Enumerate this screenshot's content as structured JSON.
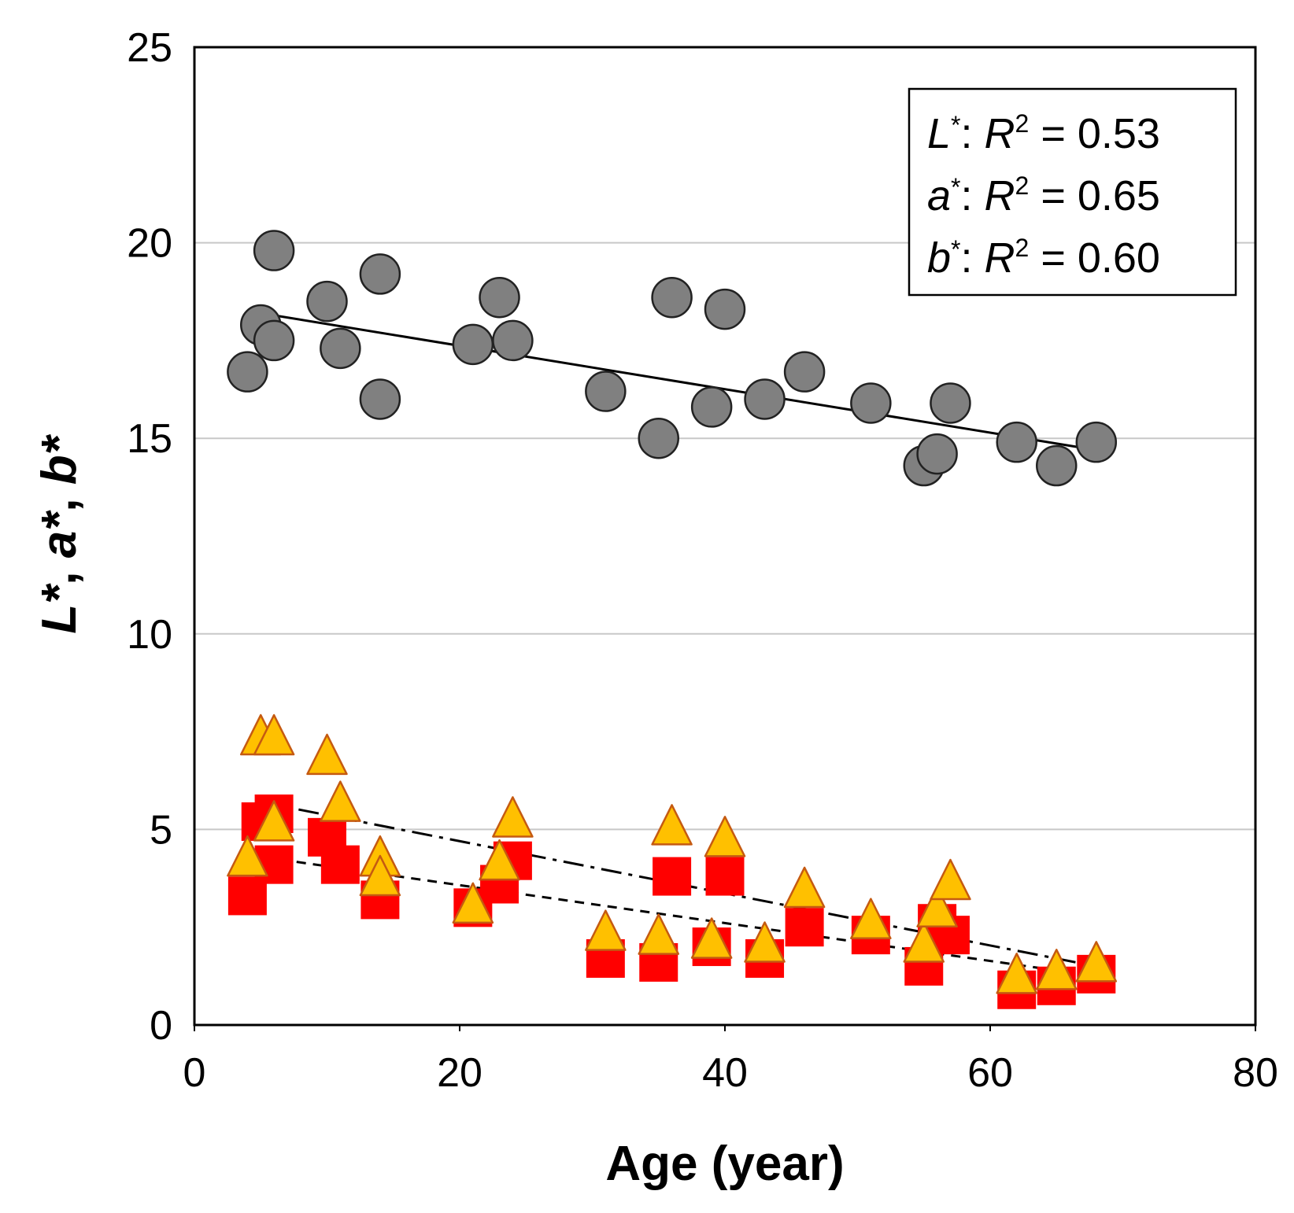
{
  "chart_data": {
    "type": "scatter",
    "title": "",
    "xlabel": "Age (year)",
    "ylabel_parts": [
      "L*",
      ", ",
      "a*",
      ", ",
      "b*"
    ],
    "xlim": [
      0,
      80
    ],
    "ylim": [
      0,
      25
    ],
    "xticks": [
      0,
      20,
      40,
      60,
      80
    ],
    "yticks": [
      0,
      5,
      10,
      15,
      20,
      25
    ],
    "grid": "horizontal",
    "legend": {
      "placement": "top-right",
      "entries": [
        {
          "symbol": "L",
          "star": "*",
          "r": "R",
          "sq": "2",
          "value": "= 0.53"
        },
        {
          "symbol": "a",
          "star": "*",
          "r": "R",
          "sq": "2",
          "value": "= 0.65"
        },
        {
          "symbol": "b",
          "star": "*",
          "r": "R",
          "sq": "2",
          "value": "= 0.60"
        }
      ]
    },
    "series": [
      {
        "name": "L*",
        "marker": "circle",
        "color": "#808080",
        "edge": "#222222",
        "points": [
          [
            4,
            16.7
          ],
          [
            5,
            17.9
          ],
          [
            6,
            19.8
          ],
          [
            6,
            17.5
          ],
          [
            10,
            18.5
          ],
          [
            11,
            17.3
          ],
          [
            14,
            19.2
          ],
          [
            14,
            16
          ],
          [
            21,
            17.4
          ],
          [
            23,
            18.6
          ],
          [
            24,
            17.5
          ],
          [
            31,
            16.2
          ],
          [
            35,
            15
          ],
          [
            36,
            18.6
          ],
          [
            39,
            15.8
          ],
          [
            40,
            18.3
          ],
          [
            43,
            16
          ],
          [
            46,
            16.7
          ],
          [
            51,
            15.9
          ],
          [
            55,
            14.3
          ],
          [
            56,
            14.6
          ],
          [
            57,
            15.9
          ],
          [
            62,
            14.9
          ],
          [
            65,
            14.3
          ],
          [
            68,
            14.9
          ]
        ],
        "trend": {
          "x": [
            5,
            68
          ],
          "y": [
            18.2,
            14.7
          ],
          "style": "solid"
        }
      },
      {
        "name": "a*",
        "marker": "square",
        "color": "#ff0000",
        "edge": "#ff0000",
        "points": [
          [
            4,
            3.3
          ],
          [
            5,
            5.2
          ],
          [
            6,
            5.4
          ],
          [
            6,
            4.1
          ],
          [
            10,
            4.8
          ],
          [
            11,
            4.1
          ],
          [
            14,
            3.2
          ],
          [
            21,
            3
          ],
          [
            23,
            3.6
          ],
          [
            24,
            4.2
          ],
          [
            31,
            1.7
          ],
          [
            35,
            1.6
          ],
          [
            36,
            3.8
          ],
          [
            39,
            2
          ],
          [
            40,
            3.8
          ],
          [
            43,
            1.7
          ],
          [
            46,
            2.5
          ],
          [
            51,
            2.3
          ],
          [
            55,
            1.5
          ],
          [
            56,
            2.6
          ],
          [
            57,
            2.3
          ],
          [
            62,
            0.9
          ],
          [
            65,
            1
          ],
          [
            68,
            1.3
          ]
        ],
        "trend": {
          "x": [
            4,
            68
          ],
          "y": [
            4.35,
            1.25
          ],
          "style": "dashed"
        }
      },
      {
        "name": "b*",
        "marker": "triangle",
        "color": "#ffc000",
        "edge": "#c55a11",
        "points": [
          [
            4,
            4.2
          ],
          [
            5,
            7.3
          ],
          [
            6,
            7.3
          ],
          [
            6,
            5.1
          ],
          [
            10,
            6.8
          ],
          [
            11,
            5.6
          ],
          [
            14,
            4.2
          ],
          [
            14,
            3.7
          ],
          [
            21,
            3
          ],
          [
            23,
            4.1
          ],
          [
            24,
            5.2
          ],
          [
            31,
            2.3
          ],
          [
            35,
            2.2
          ],
          [
            36,
            5
          ],
          [
            39,
            2.1
          ],
          [
            40,
            4.7
          ],
          [
            43,
            2
          ],
          [
            46,
            3.4
          ],
          [
            51,
            2.6
          ],
          [
            55,
            2
          ],
          [
            56,
            2.9
          ],
          [
            57,
            3.6
          ],
          [
            62,
            1.2
          ],
          [
            65,
            1.3
          ],
          [
            68,
            1.5
          ]
        ],
        "trend": {
          "x": [
            5,
            68
          ],
          "y": [
            5.7,
            1.5
          ],
          "style": "dashdot"
        }
      }
    ]
  }
}
